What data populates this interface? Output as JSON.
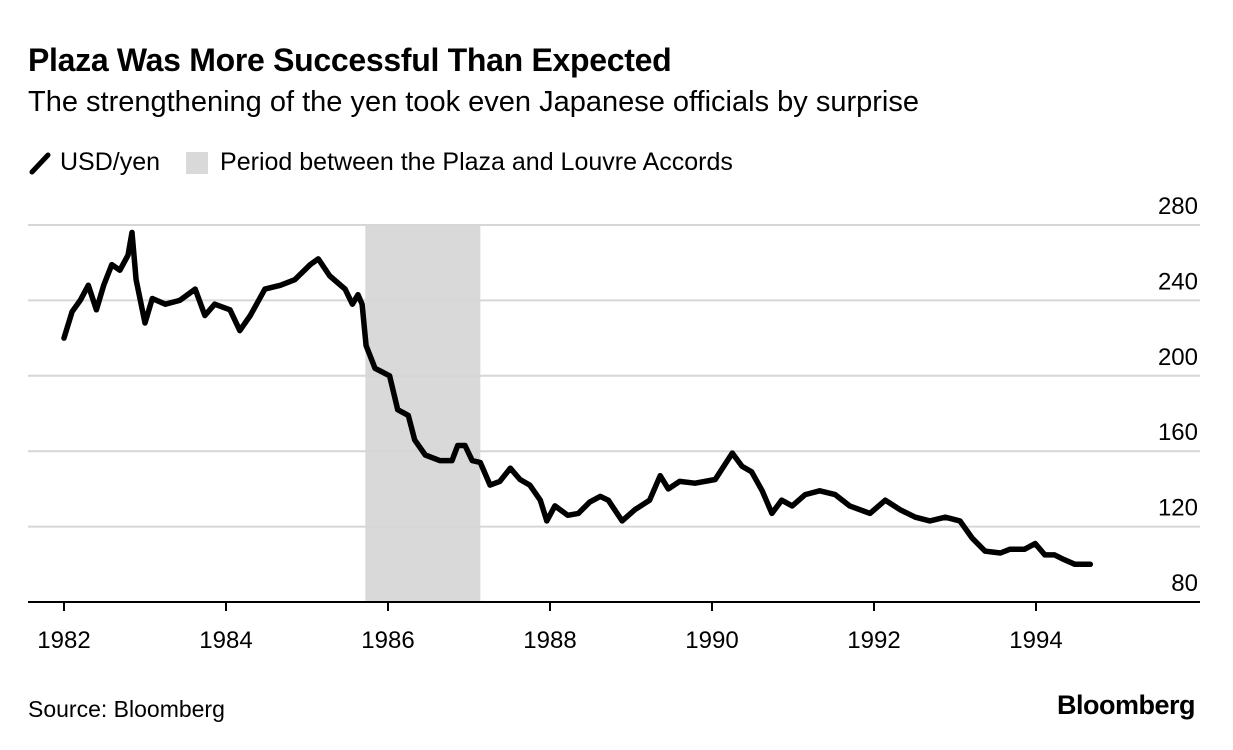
{
  "chart_data": {
    "type": "line",
    "title": "Plaza Was More Successful Than Expected",
    "subtitle": "The strengthening of the yen took even Japanese officials by surprise",
    "legend": [
      {
        "label": "USD/yen",
        "kind": "line",
        "color": "#000000"
      },
      {
        "label": "Period between the Plaza and Louvre Accords",
        "kind": "shaded",
        "color": "#d9d9d9"
      }
    ],
    "legend_placement": "top-left",
    "xlabel": "",
    "ylabel": "",
    "x_ticks": [
      "1982",
      "1984",
      "1986",
      "1988",
      "1990",
      "1992",
      "1994"
    ],
    "y_ticks": [
      "80",
      "120",
      "160",
      "200",
      "240",
      "280"
    ],
    "xlim": [
      1981.55,
      1996.0
    ],
    "ylim": [
      80,
      280
    ],
    "y_axis_side": "right",
    "grid": "horizontal",
    "shaded_period": {
      "start": 1985.72,
      "end": 1987.14
    },
    "series": [
      {
        "name": "USD/yen",
        "color": "#000000",
        "x": [
          1982.0,
          1982.1,
          1982.2,
          1982.3,
          1982.4,
          1982.49,
          1982.59,
          1982.69,
          1982.79,
          1982.84,
          1982.89,
          1983.0,
          1983.09,
          1983.25,
          1983.43,
          1983.62,
          1983.74,
          1983.86,
          1984.05,
          1984.17,
          1984.3,
          1984.48,
          1984.67,
          1984.85,
          1985.04,
          1985.14,
          1985.28,
          1985.47,
          1985.56,
          1985.63,
          1985.68,
          1985.73,
          1985.84,
          1986.02,
          1986.12,
          1986.25,
          1986.33,
          1986.46,
          1986.64,
          1986.79,
          1986.86,
          1986.95,
          1987.04,
          1987.14,
          1987.26,
          1987.38,
          1987.51,
          1987.63,
          1987.75,
          1987.88,
          1987.96,
          1988.06,
          1988.22,
          1988.35,
          1988.49,
          1988.62,
          1988.72,
          1988.89,
          1989.05,
          1989.23,
          1989.36,
          1989.46,
          1989.6,
          1989.79,
          1990.04,
          1990.25,
          1990.37,
          1990.49,
          1990.62,
          1990.74,
          1990.86,
          1990.99,
          1991.15,
          1991.33,
          1991.52,
          1991.7,
          1991.95,
          1992.14,
          1992.32,
          1992.51,
          1992.69,
          1992.88,
          1993.06,
          1993.21,
          1993.37,
          1993.56,
          1993.68,
          1993.86,
          1993.99,
          1994.11,
          1994.23,
          1994.32,
          1994.48,
          1994.67
        ],
        "y": [
          220,
          234,
          240,
          248,
          235,
          248,
          259,
          256,
          264,
          276,
          251,
          228,
          241,
          238,
          240,
          246,
          232,
          238,
          235,
          224,
          232,
          246,
          248,
          251,
          259,
          262,
          253,
          246,
          238,
          243,
          238,
          216,
          204,
          200,
          182,
          179,
          166,
          158,
          155,
          155,
          163,
          163,
          155,
          154,
          142,
          144,
          151,
          145,
          142,
          134,
          123,
          131,
          126,
          127,
          133,
          136,
          134,
          123,
          129,
          134,
          147,
          140,
          144,
          143,
          145,
          159,
          152,
          149,
          139,
          127,
          134,
          131,
          137,
          139,
          137,
          131,
          127,
          134,
          129,
          125,
          123,
          125,
          123,
          114,
          107,
          106,
          108,
          108,
          111,
          105,
          105,
          103,
          100,
          100
        ]
      }
    ]
  },
  "footer": {
    "source": "Source: Bloomberg",
    "logo": "Bloomberg"
  }
}
